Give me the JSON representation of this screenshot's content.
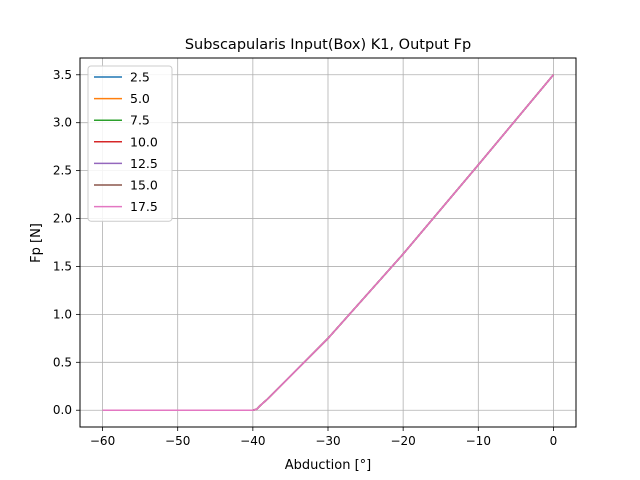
{
  "chart_data": {
    "type": "line",
    "title": "Subscapularis Input(Box) K1, Output Fp",
    "xlabel": "Abduction [°]",
    "ylabel": "Fp [N]",
    "xlim": [
      -63,
      3
    ],
    "ylim": [
      -0.175,
      3.675
    ],
    "xticks": [
      -60,
      -50,
      -40,
      -30,
      -20,
      -10,
      0
    ],
    "xtick_labels": [
      "−60",
      "−50",
      "−40",
      "−30",
      "−20",
      "−10",
      "0"
    ],
    "yticks": [
      0.0,
      0.5,
      1.0,
      1.5,
      2.0,
      2.5,
      3.0,
      3.5
    ],
    "ytick_labels": [
      "0.0",
      "0.5",
      "1.0",
      "1.5",
      "2.0",
      "2.5",
      "3.0",
      "3.5"
    ],
    "grid": true,
    "legend_position": "top-left",
    "x": [
      -60,
      -50,
      -40,
      -39.5,
      -39,
      -38,
      -30,
      -20,
      -10,
      0
    ],
    "series": [
      {
        "name": "2.5",
        "color": "#1f77b4",
        "values": [
          0,
          0,
          0,
          0.01,
          0.05,
          0.12,
          0.75,
          1.63,
          2.56,
          3.5
        ]
      },
      {
        "name": "5.0",
        "color": "#ff7f0e",
        "values": [
          0,
          0,
          0,
          0.01,
          0.05,
          0.12,
          0.75,
          1.63,
          2.56,
          3.5
        ]
      },
      {
        "name": "7.5",
        "color": "#2ca02c",
        "values": [
          0,
          0,
          0,
          0.01,
          0.05,
          0.12,
          0.75,
          1.63,
          2.56,
          3.5
        ]
      },
      {
        "name": "10.0",
        "color": "#d62728",
        "values": [
          0,
          0,
          0,
          0.01,
          0.05,
          0.12,
          0.75,
          1.63,
          2.56,
          3.5
        ]
      },
      {
        "name": "12.5",
        "color": "#9467bd",
        "values": [
          0,
          0,
          0,
          0.01,
          0.05,
          0.12,
          0.75,
          1.63,
          2.56,
          3.5
        ]
      },
      {
        "name": "15.0",
        "color": "#8c564b",
        "values": [
          0,
          0,
          0,
          0.01,
          0.05,
          0.12,
          0.75,
          1.63,
          2.56,
          3.5
        ]
      },
      {
        "name": "17.5",
        "color": "#e377c2",
        "values": [
          0,
          0,
          0,
          0.01,
          0.05,
          0.12,
          0.75,
          1.63,
          2.56,
          3.5
        ]
      }
    ]
  }
}
